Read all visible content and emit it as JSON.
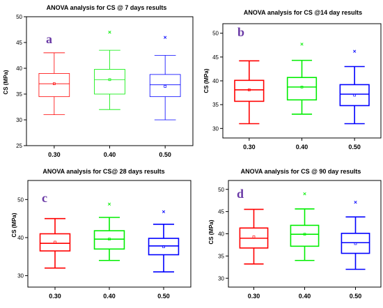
{
  "chart_data": [
    {
      "type": "box",
      "panel_letter": "a",
      "title": "ANOVA analysis for CS @ 7 days results",
      "ylabel": "CS (MPa)",
      "categories": [
        "0.30",
        "0.40",
        "0.50"
      ],
      "ylim": [
        25,
        50
      ],
      "yticks": [
        25,
        30,
        35,
        40,
        45,
        50
      ],
      "colors": [
        "#ff0000",
        "#00ee00",
        "#0000ff"
      ],
      "stroke": "thin",
      "boxes": [
        {
          "min": 31,
          "q1": 34.5,
          "median": 37,
          "q3": 39,
          "max": 43,
          "mean": 37,
          "outlier": null
        },
        {
          "min": 32,
          "q1": 35,
          "median": 37.8,
          "q3": 39.8,
          "max": 43.5,
          "mean": 37.8,
          "outlier": 47
        },
        {
          "min": 30,
          "q1": 34.5,
          "median": 36.8,
          "q3": 38.8,
          "max": 42.5,
          "mean": 36.5,
          "outlier": 46
        }
      ]
    },
    {
      "type": "box",
      "panel_letter": "b",
      "title": "ANOVA  analysis for CS @14 day results",
      "ylabel": "CS (MPa)",
      "categories": [
        "0.30",
        "0.40",
        "0.50"
      ],
      "ylim": [
        28,
        52
      ],
      "yticks": [
        30,
        35,
        40,
        45,
        50
      ],
      "colors": [
        "#ff0000",
        "#00ee00",
        "#0000ff"
      ],
      "stroke": "thick",
      "boxes": [
        {
          "min": 31,
          "q1": 35.7,
          "median": 38.1,
          "q3": 40.1,
          "max": 44.2,
          "mean": 38.1,
          "outlier": null
        },
        {
          "min": 33,
          "q1": 36,
          "median": 38.7,
          "q3": 40.7,
          "max": 44.3,
          "mean": 38.7,
          "outlier": 47.7
        },
        {
          "min": 31,
          "q1": 34.8,
          "median": 37.2,
          "q3": 39.2,
          "max": 43,
          "mean": 37,
          "outlier": 46.2
        }
      ]
    },
    {
      "type": "box",
      "panel_letter": "c",
      "title": "ANOVA analysis for CS@ 28 days results",
      "ylabel": "CS (MPa)",
      "categories": [
        "0.30",
        "0.40",
        "0.50"
      ],
      "ylim": [
        27,
        55
      ],
      "yticks": [
        30,
        40,
        50
      ],
      "colors": [
        "#ff0000",
        "#00ee00",
        "#0000ff"
      ],
      "stroke": "thick",
      "boxes": [
        {
          "min": 32,
          "q1": 36.5,
          "median": 38.5,
          "q3": 41,
          "max": 45,
          "mean": 38.8,
          "outlier": null
        },
        {
          "min": 34,
          "q1": 37,
          "median": 39.6,
          "q3": 41.8,
          "max": 45.3,
          "mean": 39.6,
          "outlier": 48.8
        },
        {
          "min": 31,
          "q1": 35.5,
          "median": 37.8,
          "q3": 39.8,
          "max": 43.5,
          "mean": 37.6,
          "outlier": 46.8
        }
      ]
    },
    {
      "type": "box",
      "panel_letter": "d",
      "title": "ANOVA analysis for CS @ 90 day results",
      "ylabel": "CS (MPa)",
      "categories": [
        "0.30",
        "0.40",
        "0.50"
      ],
      "ylim": [
        28,
        52
      ],
      "yticks": [
        30,
        35,
        40,
        45,
        50
      ],
      "colors": [
        "#ff0000",
        "#00ee00",
        "#0000ff"
      ],
      "stroke": "thick",
      "boxes": [
        {
          "min": 33.2,
          "q1": 36.8,
          "median": 39,
          "q3": 41.3,
          "max": 45.5,
          "mean": 39.3,
          "outlier": null
        },
        {
          "min": 34,
          "q1": 37.2,
          "median": 39.9,
          "q3": 41.9,
          "max": 45.6,
          "mean": 39.9,
          "outlier": 49
        },
        {
          "min": 32,
          "q1": 35.6,
          "median": 38,
          "q3": 40.1,
          "max": 43.8,
          "mean": 37.8,
          "outlier": 47.1
        }
      ]
    }
  ]
}
